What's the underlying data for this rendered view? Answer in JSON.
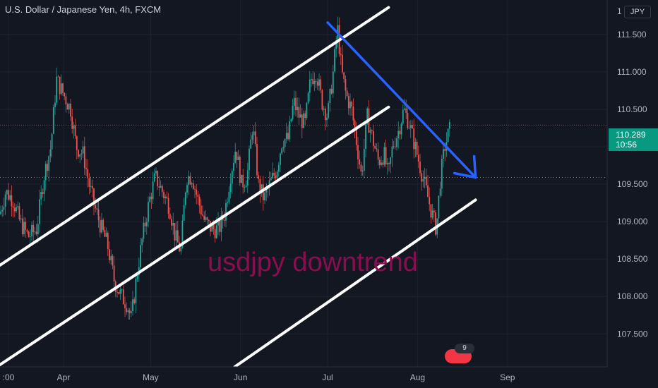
{
  "header": {
    "title": "U.S. Dollar / Japanese Yen, 4h, FXCM",
    "currency": "JPY"
  },
  "price_badge": {
    "price": "110.289",
    "countdown": "10:56"
  },
  "news_badge": {
    "count": "9"
  },
  "chart_data": {
    "type": "candlestick",
    "title": "U.S. Dollar / Japanese Yen, 4h, FXCM",
    "x_tick_labels": [
      ":00",
      "Apr",
      "May",
      "Jun",
      "Jul",
      "Aug",
      "Sep"
    ],
    "y_tick_labels": [
      "107.500",
      "108.000",
      "108.500",
      "109.000",
      "109.500",
      "110.000",
      "110.500",
      "111.000",
      "111.500"
    ],
    "ylim": [
      107.06,
      111.96
    ],
    "current_price": 110.289,
    "reference_price": 109.59,
    "annotation": "usdjpy downtrend",
    "price_path": [
      [
        0,
        109.1
      ],
      [
        8,
        109.4
      ],
      [
        18,
        109.3
      ],
      [
        28,
        109.0
      ],
      [
        40,
        108.8
      ],
      [
        52,
        108.9
      ],
      [
        62,
        109.6
      ],
      [
        72,
        110.0
      ],
      [
        80,
        110.9
      ],
      [
        90,
        110.7
      ],
      [
        100,
        110.5
      ],
      [
        108,
        110.0
      ],
      [
        118,
        109.9
      ],
      [
        126,
        109.5
      ],
      [
        134,
        109.2
      ],
      [
        144,
        108.9
      ],
      [
        152,
        108.7
      ],
      [
        162,
        108.2
      ],
      [
        172,
        108.0
      ],
      [
        180,
        107.9
      ],
      [
        186,
        107.7
      ],
      [
        194,
        108.3
      ],
      [
        202,
        108.8
      ],
      [
        212,
        109.3
      ],
      [
        220,
        109.6
      ],
      [
        230,
        109.4
      ],
      [
        240,
        109.2
      ],
      [
        248,
        108.8
      ],
      [
        256,
        108.6
      ],
      [
        264,
        109.6
      ],
      [
        272,
        109.6
      ],
      [
        280,
        109.3
      ],
      [
        290,
        109.0
      ],
      [
        300,
        108.9
      ],
      [
        310,
        108.9
      ],
      [
        318,
        109.1
      ],
      [
        326,
        109.6
      ],
      [
        334,
        110.0
      ],
      [
        342,
        109.5
      ],
      [
        350,
        109.6
      ],
      [
        358,
        110.3
      ],
      [
        366,
        109.5
      ],
      [
        374,
        109.3
      ],
      [
        382,
        109.5
      ],
      [
        392,
        109.7
      ],
      [
        400,
        110.1
      ],
      [
        408,
        110.1
      ],
      [
        416,
        110.6
      ],
      [
        424,
        110.4
      ],
      [
        432,
        110.3
      ],
      [
        440,
        110.9
      ],
      [
        448,
        111.0
      ],
      [
        456,
        110.6
      ],
      [
        464,
        110.4
      ],
      [
        472,
        111.0
      ],
      [
        478,
        111.6
      ],
      [
        484,
        111.0
      ],
      [
        490,
        110.7
      ],
      [
        498,
        110.5
      ],
      [
        506,
        110.0
      ],
      [
        512,
        109.6
      ],
      [
        520,
        110.4
      ],
      [
        528,
        110.1
      ],
      [
        536,
        109.8
      ],
      [
        544,
        109.9
      ],
      [
        550,
        109.6
      ],
      [
        556,
        110.0
      ],
      [
        564,
        110.2
      ],
      [
        572,
        110.5
      ],
      [
        580,
        110.3
      ],
      [
        588,
        110.0
      ],
      [
        596,
        109.7
      ],
      [
        604,
        109.4
      ],
      [
        612,
        109.1
      ],
      [
        618,
        108.9
      ],
      [
        624,
        109.6
      ],
      [
        630,
        110.0
      ],
      [
        636,
        110.2
      ],
      [
        640,
        110.3
      ]
    ]
  },
  "drawings": {
    "channel_lines": [
      {
        "p1": [
          "2021-03-09",
          108.39
        ],
        "p2": [
          "2021-07-22",
          111.86
        ]
      },
      {
        "p1": [
          "2021-03-09",
          107.06
        ],
        "p2": [
          "2021-07-22",
          110.53
        ]
      },
      {
        "p1": [
          "2021-05-30",
          107.06
        ],
        "p2": [
          "2021-08-21",
          109.29
        ]
      }
    ],
    "arrow": {
      "p1": [
        "2021-07-01",
        111.66
      ],
      "p2": [
        "2021-08-21",
        109.59
      ]
    }
  },
  "colors": {
    "background": "#131722",
    "grid": "#1e222d",
    "up_candle": "#26a69a",
    "down_candle": "#ef5350",
    "channel_line": "#ffffff",
    "arrow": "#2962ff",
    "annotation_text": "#880e4f",
    "price_line": "#089981",
    "axis_text": "#b2b5be"
  }
}
